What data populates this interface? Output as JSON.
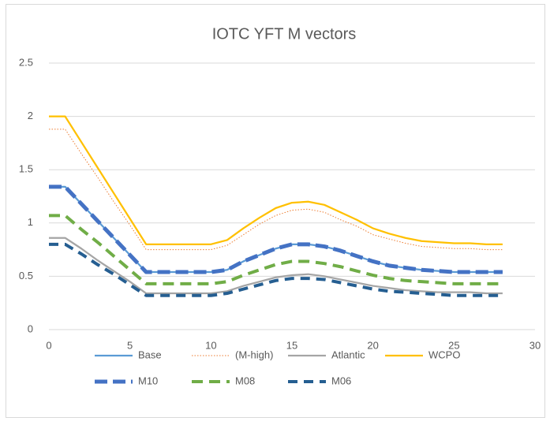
{
  "chart_data": {
    "type": "line",
    "title": "IOTC YFT  M vectors",
    "x": [
      0,
      1,
      2,
      3,
      4,
      5,
      6,
      7,
      8,
      9,
      10,
      11,
      12,
      13,
      14,
      15,
      16,
      17,
      18,
      19,
      20,
      21,
      22,
      23,
      24,
      25,
      26,
      27,
      28
    ],
    "xlim": [
      0,
      30
    ],
    "xticks": [
      0,
      5,
      10,
      15,
      20,
      25,
      30
    ],
    "ylim": [
      0,
      2.5
    ],
    "yticks": [
      0,
      0.5,
      1,
      1.5,
      2,
      2.5
    ],
    "grid": true,
    "series": [
      {
        "name": "Base",
        "color": "#5b9bd5",
        "values": [
          1.34,
          1.34,
          1.18,
          1.02,
          0.86,
          0.7,
          0.54,
          0.54,
          0.54,
          0.54,
          0.54,
          0.56,
          0.64,
          0.7,
          0.76,
          0.8,
          0.8,
          0.78,
          0.74,
          0.69,
          0.64,
          0.6,
          0.58,
          0.56,
          0.55,
          0.54,
          0.54,
          0.54,
          0.54
        ]
      },
      {
        "name": "(M-high)",
        "color": "#ed7d31",
        "values": [
          1.88,
          1.88,
          1.65,
          1.43,
          1.2,
          0.98,
          0.75,
          0.75,
          0.75,
          0.75,
          0.75,
          0.79,
          0.89,
          0.99,
          1.07,
          1.12,
          1.13,
          1.1,
          1.03,
          0.97,
          0.89,
          0.85,
          0.81,
          0.78,
          0.77,
          0.76,
          0.76,
          0.75,
          0.75
        ]
      },
      {
        "name": "Atlantic",
        "color": "#a5a5a5",
        "values": [
          0.86,
          0.86,
          0.76,
          0.65,
          0.55,
          0.45,
          0.34,
          0.34,
          0.34,
          0.34,
          0.34,
          0.36,
          0.41,
          0.45,
          0.49,
          0.51,
          0.52,
          0.5,
          0.47,
          0.44,
          0.41,
          0.39,
          0.37,
          0.36,
          0.35,
          0.35,
          0.35,
          0.34,
          0.34
        ]
      },
      {
        "name": "WCPO",
        "color": "#ffc000",
        "values": [
          2.0,
          2.0,
          1.76,
          1.52,
          1.28,
          1.04,
          0.8,
          0.8,
          0.8,
          0.8,
          0.8,
          0.84,
          0.95,
          1.05,
          1.14,
          1.19,
          1.2,
          1.17,
          1.1,
          1.03,
          0.95,
          0.9,
          0.86,
          0.83,
          0.82,
          0.81,
          0.81,
          0.8,
          0.8
        ]
      },
      {
        "name": "M10",
        "color": "#4472c4",
        "values": [
          1.34,
          1.34,
          1.18,
          1.02,
          0.86,
          0.7,
          0.54,
          0.54,
          0.54,
          0.54,
          0.54,
          0.56,
          0.64,
          0.7,
          0.76,
          0.8,
          0.8,
          0.78,
          0.74,
          0.69,
          0.64,
          0.6,
          0.58,
          0.56,
          0.55,
          0.54,
          0.54,
          0.54,
          0.54
        ]
      },
      {
        "name": "M08",
        "color": "#70ad47",
        "values": [
          1.07,
          1.07,
          0.94,
          0.82,
          0.69,
          0.56,
          0.43,
          0.43,
          0.43,
          0.43,
          0.43,
          0.45,
          0.51,
          0.56,
          0.61,
          0.64,
          0.64,
          0.62,
          0.59,
          0.55,
          0.51,
          0.48,
          0.46,
          0.45,
          0.44,
          0.43,
          0.43,
          0.43,
          0.43
        ]
      },
      {
        "name": "M06",
        "color": "#255e91",
        "values": [
          0.8,
          0.8,
          0.71,
          0.61,
          0.52,
          0.42,
          0.32,
          0.32,
          0.32,
          0.32,
          0.32,
          0.34,
          0.38,
          0.42,
          0.46,
          0.48,
          0.48,
          0.47,
          0.44,
          0.41,
          0.38,
          0.36,
          0.35,
          0.34,
          0.33,
          0.32,
          0.32,
          0.32,
          0.32
        ]
      }
    ]
  }
}
